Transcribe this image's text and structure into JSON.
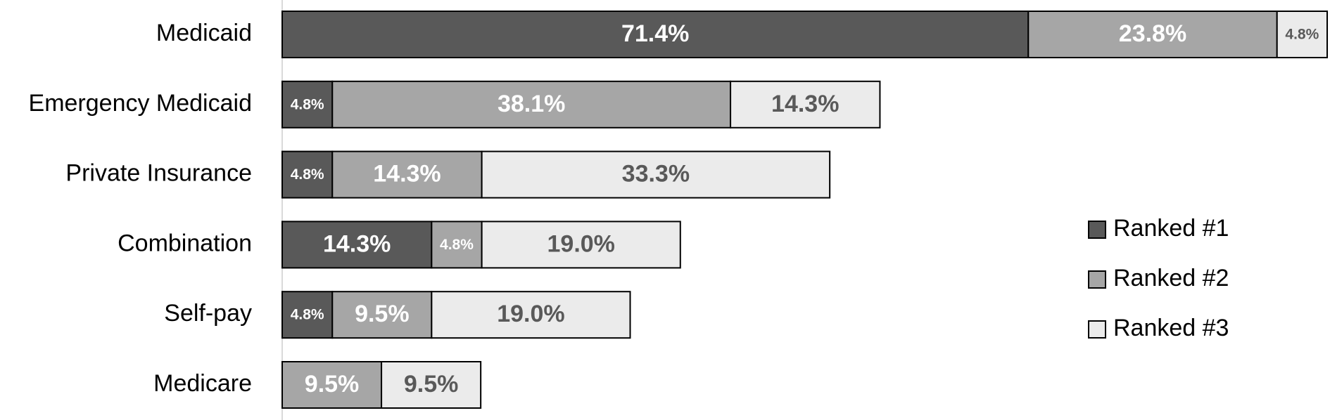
{
  "chart_data": {
    "type": "stacked-bar-horizontal",
    "categories": [
      "Medicaid",
      "Emergency Medicaid",
      "Private Insurance",
      "Combination",
      "Self-pay",
      "Medicare"
    ],
    "series": [
      {
        "name": "Ranked #1",
        "color": "#595959",
        "values": [
          71.4,
          4.8,
          4.8,
          14.3,
          4.8,
          null
        ],
        "value_labels": [
          "71.4%",
          "4.8%",
          "4.8%",
          "14.3%",
          "4.8%",
          null
        ]
      },
      {
        "name": "Ranked #2",
        "color": "#a6a6a6",
        "values": [
          23.8,
          38.1,
          14.3,
          4.8,
          9.5,
          9.5
        ],
        "value_labels": [
          "23.8%",
          "38.1%",
          "14.3%",
          "4.8%",
          "9.5%",
          "9.5%"
        ]
      },
      {
        "name": "Ranked #3",
        "color": "#ebebeb",
        "values": [
          4.8,
          14.3,
          33.3,
          19.0,
          19.0,
          9.5
        ],
        "value_labels": [
          "4.8%",
          "14.3%",
          "33.3%",
          "19.0%",
          "19.0%",
          "9.5%"
        ]
      }
    ],
    "xlim": [
      0,
      100
    ],
    "legend": "right"
  }
}
